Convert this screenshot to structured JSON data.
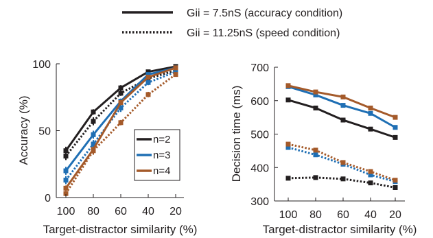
{
  "figure_legend": [
    {
      "label": "Gii = 7.5nS (accuracy condition)",
      "style": "solid"
    },
    {
      "label": "Gii = 11.25nS (speed condition)",
      "style": "dotted"
    }
  ],
  "chart_data": [
    {
      "type": "line",
      "xlabel": "Target-distractor similarity (%)",
      "ylabel": "Accuracy (%)",
      "x": [
        100,
        80,
        60,
        40,
        20
      ],
      "x_axis_reversed": true,
      "ylim": [
        0,
        100
      ],
      "yticks": [
        0,
        50,
        100
      ],
      "grid": false,
      "legend": {
        "placement": "center-right",
        "entries": [
          "n=2",
          "n=3",
          "n=4"
        ]
      },
      "series": [
        {
          "name": "n=2",
          "condition": "accuracy",
          "style": "solid",
          "color": "#231f20",
          "values": [
            35,
            64,
            82,
            94,
            98
          ],
          "error": [
            3,
            2,
            2,
            1,
            1
          ]
        },
        {
          "name": "n=3",
          "condition": "accuracy",
          "style": "solid",
          "color": "#1f6fb4",
          "values": [
            20,
            47,
            72,
            92,
            97
          ],
          "error": [
            3,
            3,
            2,
            1,
            1
          ]
        },
        {
          "name": "n=4",
          "condition": "accuracy",
          "style": "solid",
          "color": "#a45a2a",
          "values": [
            7,
            36,
            71,
            90,
            97
          ],
          "error": [
            2,
            2,
            2,
            1,
            1
          ]
        },
        {
          "name": "n=2",
          "condition": "speed",
          "style": "dotted",
          "color": "#231f20",
          "values": [
            31,
            57,
            78,
            89,
            95
          ],
          "error": [
            3,
            3,
            2,
            2,
            1
          ]
        },
        {
          "name": "n=3",
          "condition": "speed",
          "style": "dotted",
          "color": "#1f6fb4",
          "values": [
            13,
            40,
            67,
            86,
            94
          ],
          "error": [
            3,
            3,
            3,
            2,
            1
          ]
        },
        {
          "name": "n=4",
          "condition": "speed",
          "style": "dotted",
          "color": "#a45a2a",
          "values": [
            3,
            35,
            56,
            77,
            92
          ],
          "error": [
            2,
            3,
            2,
            2,
            1
          ]
        }
      ]
    },
    {
      "type": "line",
      "xlabel": "Target-distractor similarity (%)",
      "ylabel": "Decision time (ms)",
      "x": [
        100,
        80,
        60,
        40,
        20
      ],
      "x_axis_reversed": true,
      "ylim": [
        300,
        700
      ],
      "yticks": [
        300,
        400,
        500,
        600,
        700
      ],
      "grid": false,
      "series": [
        {
          "name": "n=2",
          "condition": "accuracy",
          "style": "solid",
          "color": "#231f20",
          "values": [
            602,
            578,
            542,
            515,
            490
          ],
          "error": [
            6,
            6,
            5,
            4,
            4
          ]
        },
        {
          "name": "n=3",
          "condition": "accuracy",
          "style": "solid",
          "color": "#1f6fb4",
          "values": [
            642,
            617,
            586,
            562,
            520
          ],
          "error": [
            6,
            6,
            5,
            4,
            4
          ]
        },
        {
          "name": "n=4",
          "condition": "accuracy",
          "style": "solid",
          "color": "#a45a2a",
          "values": [
            645,
            626,
            611,
            578,
            550
          ],
          "error": [
            6,
            6,
            5,
            4,
            4
          ]
        },
        {
          "name": "n=2",
          "condition": "speed",
          "style": "dotted",
          "color": "#231f20",
          "values": [
            368,
            370,
            366,
            354,
            340
          ],
          "error": [
            4,
            4,
            4,
            4,
            4
          ]
        },
        {
          "name": "n=3",
          "condition": "speed",
          "style": "dotted",
          "color": "#1f6fb4",
          "values": [
            460,
            438,
            410,
            378,
            358
          ],
          "error": [
            6,
            6,
            5,
            5,
            4
          ]
        },
        {
          "name": "n=4",
          "condition": "speed",
          "style": "dotted",
          "color": "#a45a2a",
          "values": [
            470,
            452,
            415,
            388,
            362
          ],
          "error": [
            6,
            6,
            5,
            5,
            4
          ]
        }
      ]
    }
  ]
}
